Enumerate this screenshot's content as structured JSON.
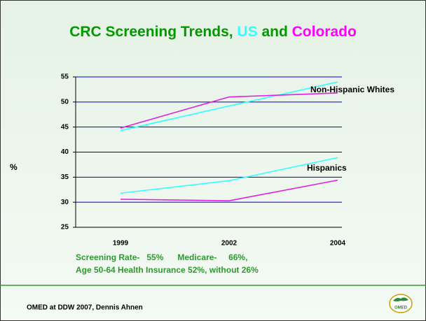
{
  "chart_data": {
    "type": "line",
    "title_parts": [
      {
        "text": "CRC Screening Trends, ",
        "color": "#009a00"
      },
      {
        "text": "US",
        "color": "#33ffff"
      },
      {
        "text": " and ",
        "color": "#009a00"
      },
      {
        "text": "Colorado",
        "color": "#ff00ff"
      }
    ],
    "ylabel": "%",
    "categories": [
      "1999",
      "2002",
      "2004"
    ],
    "series": [
      {
        "color": "#33ffff",
        "values": [
          44.3,
          49.2,
          54
        ]
      },
      {
        "color": "#e020e0",
        "values": [
          44.8,
          51,
          51.8
        ]
      },
      {
        "color": "#33ffff",
        "values": [
          31.8,
          34.3,
          38.9
        ]
      },
      {
        "color": "#e020e0",
        "values": [
          30.6,
          30.3,
          34.4
        ]
      }
    ],
    "annotations": [
      "Non-Hispanic Whites",
      "Hispanics"
    ],
    "ylim": [
      25,
      55
    ],
    "yticks": [
      25,
      30,
      35,
      40,
      45,
      50,
      55
    ],
    "grid": true,
    "grid_color": "#0000cc",
    "notes": [
      "Screening Rate-   55%      Medicare-     66%,",
      "Age 50-64 Health Insurance 52%, without 26%"
    ],
    "footer": "OMED at DDW 2007, Dennis Ahnen",
    "logo_text": "OMED"
  }
}
